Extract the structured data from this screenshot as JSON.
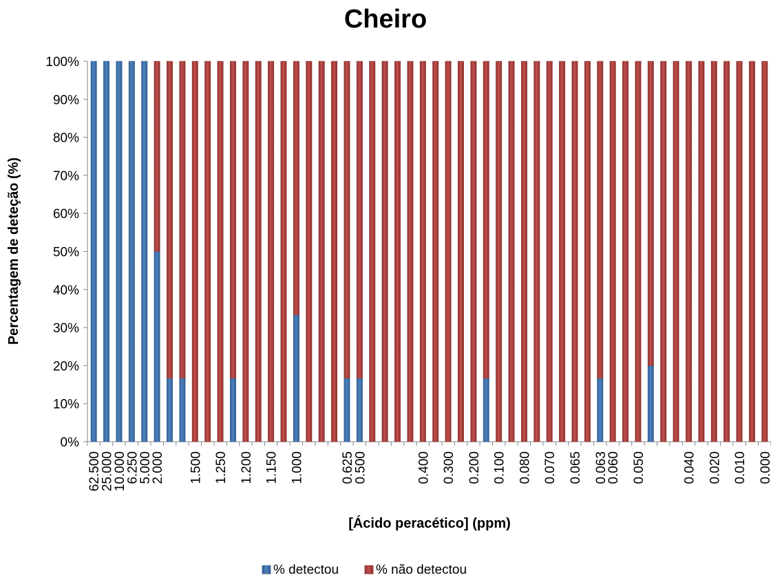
{
  "chart_data": {
    "type": "bar",
    "stacked": true,
    "title": "Cheiro",
    "xlabel": "[Ácido peracético] (ppm)",
    "ylabel": "Percentagem de deteção (%)",
    "ylim": [
      0,
      100
    ],
    "y_ticks": [
      "0%",
      "10%",
      "20%",
      "30%",
      "40%",
      "50%",
      "60%",
      "70%",
      "80%",
      "90%",
      "100%"
    ],
    "grid": false,
    "legend_position": "bottom",
    "x_tick_labels": [
      {
        "index": 0,
        "label": "62.500"
      },
      {
        "index": 1,
        "label": "25.000"
      },
      {
        "index": 2,
        "label": "10.000"
      },
      {
        "index": 3,
        "label": "6.250"
      },
      {
        "index": 4,
        "label": "5.000"
      },
      {
        "index": 5,
        "label": "2.000"
      },
      {
        "index": 8,
        "label": "1.500"
      },
      {
        "index": 10,
        "label": "1.250"
      },
      {
        "index": 12,
        "label": "1.200"
      },
      {
        "index": 14,
        "label": "1.150"
      },
      {
        "index": 16,
        "label": "1.000"
      },
      {
        "index": 20,
        "label": "0.625"
      },
      {
        "index": 21,
        "label": "0.500"
      },
      {
        "index": 26,
        "label": "0.400"
      },
      {
        "index": 28,
        "label": "0.300"
      },
      {
        "index": 30,
        "label": "0.200"
      },
      {
        "index": 32,
        "label": "0.100"
      },
      {
        "index": 34,
        "label": "0.080"
      },
      {
        "index": 36,
        "label": "0.070"
      },
      {
        "index": 38,
        "label": "0.065"
      },
      {
        "index": 40,
        "label": "0.063"
      },
      {
        "index": 41,
        "label": "0.060"
      },
      {
        "index": 43,
        "label": "0.050"
      },
      {
        "index": 47,
        "label": "0.040"
      },
      {
        "index": 49,
        "label": "0.020"
      },
      {
        "index": 51,
        "label": "0.010"
      },
      {
        "index": 53,
        "label": "0.000"
      }
    ],
    "series": [
      {
        "name": "% detectou",
        "color": "#4F81BD",
        "values": [
          100,
          100,
          100,
          100,
          100,
          50,
          16.7,
          16.7,
          0,
          0,
          0,
          16.7,
          0,
          0,
          0,
          0,
          33.3,
          0,
          0,
          0,
          16.7,
          16.7,
          0,
          0,
          0,
          0,
          0,
          0,
          0,
          0,
          0,
          16.7,
          0,
          0,
          0,
          0,
          0,
          0,
          0,
          0,
          16.7,
          0,
          0,
          0,
          20,
          0,
          0,
          0,
          0,
          0,
          0,
          0,
          0,
          0
        ]
      },
      {
        "name": "% não detectou",
        "color": "#C0504D",
        "values": [
          0,
          0,
          0,
          0,
          0,
          50,
          83.3,
          83.3,
          100,
          100,
          100,
          83.3,
          100,
          100,
          100,
          100,
          66.7,
          100,
          100,
          100,
          83.3,
          83.3,
          100,
          100,
          100,
          100,
          100,
          100,
          100,
          100,
          100,
          83.3,
          100,
          100,
          100,
          100,
          100,
          100,
          100,
          100,
          83.3,
          100,
          100,
          100,
          80,
          100,
          100,
          100,
          100,
          100,
          100,
          100,
          100,
          100
        ]
      }
    ]
  }
}
